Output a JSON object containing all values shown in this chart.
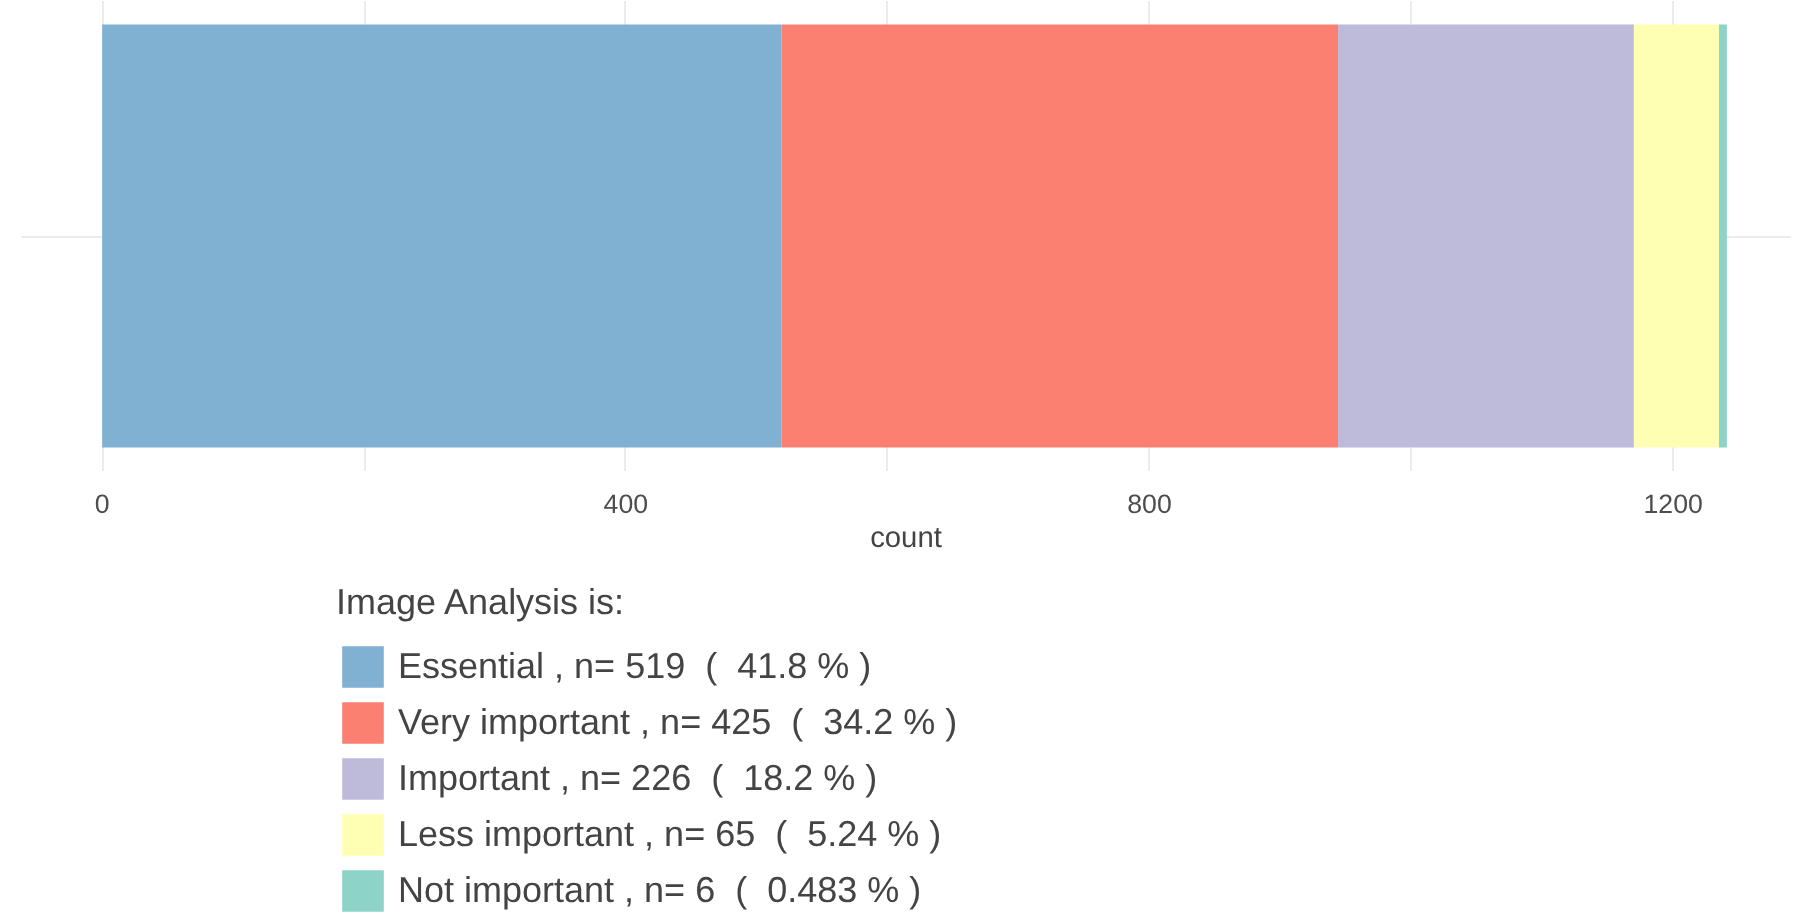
{
  "chart_data": {
    "type": "bar",
    "orientation": "horizontal",
    "stacked": true,
    "categories": [
      null
    ],
    "series": [
      {
        "name": "Essential , n= 519  (  41.8 % )",
        "color": "#80b1d3",
        "values": [
          519
        ]
      },
      {
        "name": "Very important , n= 425  (  34.2 % )",
        "color": "#fb8072",
        "values": [
          425
        ]
      },
      {
        "name": "Important , n= 226  (  18.2 % )",
        "color": "#bebada",
        "values": [
          226
        ]
      },
      {
        "name": "Less important , n= 65  (  5.24 % )",
        "color": "#ffffb3",
        "values": [
          65
        ]
      },
      {
        "name": "Not important , n= 6  (  0.483 % )",
        "color": "#8dd3c7",
        "values": [
          6
        ]
      }
    ],
    "xlabel": "count",
    "legend_title": "Image Analysis is:",
    "legend": "bottom",
    "grid": true,
    "tick_labels": "x",
    "xlim": [
      -62,
      1290
    ],
    "xticks": [
      0,
      {
        "value": 200,
        "label": null
      },
      400,
      {
        "value": 600,
        "label": null
      },
      800,
      {
        "value": 1000,
        "label": null
      },
      1200
    ]
  }
}
